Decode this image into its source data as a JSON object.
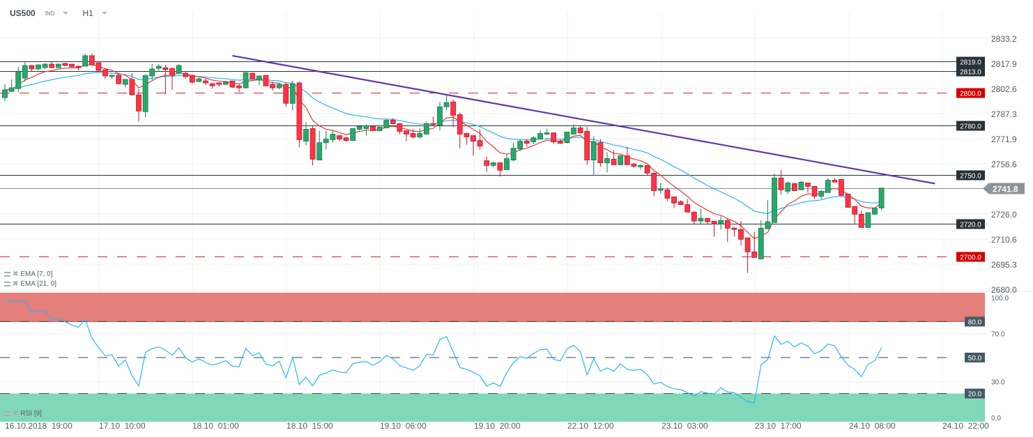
{
  "header": {
    "symbol": "US500",
    "category": "IND",
    "timeframe": "H1"
  },
  "indicators": [
    {
      "label": "EMA [7, 0]",
      "color": "#e53935"
    },
    {
      "label": "EMA [21, 0]",
      "color": "#29b6f6"
    },
    {
      "label": "RSI [9]",
      "color": "#29b6f6"
    }
  ],
  "colors": {
    "up": "#26a96c",
    "up_border": "#1b7a4e",
    "down": "#ff3347",
    "down_border": "#b71c2c",
    "trendline": "#5e35b1",
    "level": "#263238",
    "level_key": "#d50000",
    "current": "#8d9497",
    "rsi_overbought": "#e57f7b",
    "rsi_oversold": "#80d8b9"
  },
  "chart_data": {
    "type": "candlestick",
    "symbol": "US500",
    "interval": "H1",
    "price_axis": {
      "range": [
        2680.0,
        2833.2
      ],
      "ticks": [
        "2833.2",
        "2817.9",
        "2802.6",
        "2787.3",
        "2771.9",
        "2756.6",
        "2726.0",
        "2710.6",
        "2695.3",
        "2680.0"
      ]
    },
    "time_axis": {
      "ticks": [
        "16.10.2018  19:00",
        "17.10  10:00",
        "18.10  01:00",
        "18.10  15:00",
        "19.10  06:00",
        "19.10  20:00",
        "22.10  12:00",
        "23.10  03:00",
        "23.10  17:00",
        "24.10  08:00",
        "24.10  22:00"
      ]
    },
    "grid": true,
    "current_price": "2741.8",
    "levels": [
      {
        "price": 2819.0,
        "label": "2819.0",
        "style": "solid"
      },
      {
        "price": 2813.0,
        "label": "2813.0",
        "style": "solid"
      },
      {
        "price": 2800.0,
        "label": "2800.0",
        "style": "dashed-key"
      },
      {
        "price": 2780.0,
        "label": "2780.0",
        "style": "solid"
      },
      {
        "price": 2750.0,
        "label": "2750.0",
        "style": "solid"
      },
      {
        "price": 2720.0,
        "label": "2720.0",
        "style": "solid"
      },
      {
        "price": 2700.0,
        "label": "2700.0",
        "style": "dashed-key"
      }
    ],
    "trendline": {
      "start": {
        "bar": 34,
        "price": 2822.6
      },
      "end": {
        "bar": 139,
        "price": 2744.5
      }
    },
    "ema_periods": [
      7,
      21
    ],
    "rsi": {
      "period": 9,
      "range": [
        0,
        100
      ],
      "ticks": [
        "100.0",
        "70.0",
        "30.0",
        "0.0"
      ],
      "levels": [
        {
          "value": 80,
          "label": "80.0"
        },
        {
          "value": 50,
          "label": "50.0"
        },
        {
          "value": 20,
          "label": "20.0"
        }
      ]
    },
    "ohlc": [
      [
        2797.0,
        2805.1,
        2794.8,
        2801.7
      ],
      [
        2800.8,
        2808.1,
        2800.4,
        2803.0
      ],
      [
        2802.5,
        2815.8,
        2800.4,
        2812.8
      ],
      [
        2808.9,
        2818.7,
        2806.8,
        2816.6
      ],
      [
        2816.6,
        2817.0,
        2812.8,
        2814.5
      ],
      [
        2814.5,
        2817.4,
        2813.6,
        2817.0
      ],
      [
        2815.3,
        2817.9,
        2814.5,
        2817.4
      ],
      [
        2817.4,
        2818.7,
        2814.9,
        2815.3
      ],
      [
        2815.3,
        2817.9,
        2815.3,
        2817.4
      ],
      [
        2817.9,
        2818.3,
        2816.2,
        2816.6
      ],
      [
        2817.4,
        2817.4,
        2815.8,
        2815.8
      ],
      [
        2816.2,
        2816.6,
        2813.6,
        2815.3
      ],
      [
        2816.2,
        2823.8,
        2816.2,
        2822.6
      ],
      [
        2822.6,
        2823.8,
        2816.6,
        2817.0
      ],
      [
        2818.3,
        2818.3,
        2812.8,
        2813.6
      ],
      [
        2814.1,
        2814.1,
        2808.5,
        2810.2
      ],
      [
        2810.2,
        2811.1,
        2808.5,
        2810.6
      ],
      [
        2810.6,
        2811.9,
        2805.1,
        2805.5
      ],
      [
        2805.1,
        2808.5,
        2803.4,
        2808.1
      ],
      [
        2808.1,
        2811.9,
        2798.2,
        2798.7
      ],
      [
        2798.7,
        2802.1,
        2782.4,
        2788.8
      ],
      [
        2788.4,
        2810.6,
        2784.9,
        2810.6
      ],
      [
        2810.2,
        2817.4,
        2807.7,
        2814.5
      ],
      [
        2814.9,
        2817.4,
        2812.8,
        2816.2
      ],
      [
        2815.3,
        2817.0,
        2799.1,
        2814.1
      ],
      [
        2814.9,
        2815.3,
        2801.7,
        2810.6
      ],
      [
        2811.9,
        2817.4,
        2811.1,
        2816.6
      ],
      [
        2811.9,
        2813.2,
        2808.5,
        2809.8
      ],
      [
        2810.6,
        2811.1,
        2805.5,
        2806.4
      ],
      [
        2806.8,
        2809.4,
        2806.4,
        2808.5
      ],
      [
        2807.2,
        2808.5,
        2804.7,
        2806.0
      ],
      [
        2805.5,
        2806.0,
        2802.5,
        2804.2
      ],
      [
        2806.0,
        2806.4,
        2803.8,
        2805.1
      ],
      [
        2805.1,
        2807.2,
        2804.7,
        2806.4
      ],
      [
        2807.2,
        2807.2,
        2803.0,
        2803.4
      ],
      [
        2804.2,
        2805.5,
        2800.4,
        2803.0
      ],
      [
        2803.0,
        2812.3,
        2802.5,
        2812.3
      ],
      [
        2811.9,
        2812.3,
        2808.1,
        2808.5
      ],
      [
        2807.7,
        2810.6,
        2804.7,
        2810.2
      ],
      [
        2810.6,
        2810.6,
        2803.8,
        2804.2
      ],
      [
        2805.1,
        2806.8,
        2801.2,
        2803.0
      ],
      [
        2803.0,
        2806.0,
        2802.1,
        2805.1
      ],
      [
        2805.1,
        2806.4,
        2791.4,
        2793.5
      ],
      [
        2793.5,
        2807.2,
        2789.2,
        2805.5
      ],
      [
        2806.0,
        2806.8,
        2766.6,
        2771.3
      ],
      [
        2770.4,
        2781.9,
        2767.8,
        2777.7
      ],
      [
        2778.1,
        2779.8,
        2755.6,
        2759.4
      ],
      [
        2758.9,
        2776.8,
        2758.9,
        2769.5
      ],
      [
        2769.5,
        2776.8,
        2765.3,
        2771.7
      ],
      [
        2771.3,
        2776.8,
        2769.5,
        2774.7
      ],
      [
        2773.8,
        2773.8,
        2770.4,
        2771.7
      ],
      [
        2772.5,
        2773.0,
        2770.0,
        2770.8
      ],
      [
        2770.8,
        2778.1,
        2770.8,
        2778.1
      ],
      [
        2777.7,
        2779.8,
        2776.8,
        2779.4
      ],
      [
        2778.1,
        2780.7,
        2773.8,
        2779.8
      ],
      [
        2779.4,
        2779.8,
        2776.8,
        2776.8
      ],
      [
        2776.8,
        2779.4,
        2776.4,
        2779.0
      ],
      [
        2778.5,
        2783.7,
        2778.5,
        2783.2
      ],
      [
        2783.2,
        2784.5,
        2780.7,
        2781.1
      ],
      [
        2781.1,
        2781.1,
        2774.7,
        2776.4
      ],
      [
        2776.8,
        2776.8,
        2770.4,
        2774.7
      ],
      [
        2775.1,
        2777.7,
        2772.1,
        2773.0
      ],
      [
        2773.0,
        2778.5,
        2772.1,
        2775.1
      ],
      [
        2774.7,
        2782.4,
        2774.7,
        2781.1
      ],
      [
        2781.1,
        2785.4,
        2779.8,
        2780.7
      ],
      [
        2780.2,
        2794.4,
        2776.8,
        2791.4
      ],
      [
        2791.4,
        2798.7,
        2789.2,
        2794.0
      ],
      [
        2794.4,
        2795.7,
        2779.0,
        2786.2
      ],
      [
        2786.6,
        2787.9,
        2766.1,
        2774.7
      ],
      [
        2775.1,
        2775.5,
        2768.3,
        2773.0
      ],
      [
        2773.8,
        2773.8,
        2761.5,
        2770.4
      ],
      [
        2770.8,
        2777.7,
        2765.3,
        2767.4
      ],
      [
        2758.5,
        2761.0,
        2751.7,
        2755.6
      ],
      [
        2755.6,
        2758.1,
        2754.3,
        2757.2
      ],
      [
        2757.2,
        2757.2,
        2748.8,
        2752.6
      ],
      [
        2753.0,
        2762.7,
        2753.0,
        2759.8
      ],
      [
        2758.9,
        2769.5,
        2758.1,
        2766.1
      ],
      [
        2765.7,
        2771.7,
        2764.4,
        2770.4
      ],
      [
        2770.4,
        2771.7,
        2767.0,
        2769.1
      ],
      [
        2770.0,
        2773.4,
        2768.7,
        2772.5
      ],
      [
        2771.7,
        2777.2,
        2771.3,
        2775.1
      ],
      [
        2774.7,
        2778.1,
        2774.2,
        2775.5
      ],
      [
        2775.5,
        2775.5,
        2768.7,
        2770.0
      ],
      [
        2770.4,
        2771.7,
        2768.7,
        2769.1
      ],
      [
        2769.5,
        2776.0,
        2769.1,
        2776.0
      ],
      [
        2774.7,
        2780.7,
        2774.7,
        2778.5
      ],
      [
        2778.5,
        2779.8,
        2775.1,
        2775.5
      ],
      [
        2776.4,
        2779.0,
        2756.0,
        2758.9
      ],
      [
        2758.9,
        2773.4,
        2749.6,
        2770.0
      ],
      [
        2769.5,
        2771.7,
        2754.7,
        2757.2
      ],
      [
        2757.2,
        2763.6,
        2751.3,
        2759.8
      ],
      [
        2759.4,
        2764.8,
        2756.0,
        2756.0
      ],
      [
        2756.0,
        2761.9,
        2755.6,
        2761.5
      ],
      [
        2761.5,
        2767.0,
        2756.0,
        2756.0
      ],
      [
        2756.4,
        2757.2,
        2754.3,
        2755.1
      ],
      [
        2754.7,
        2756.0,
        2753.0,
        2755.6
      ],
      [
        2755.6,
        2755.6,
        2749.6,
        2750.9
      ],
      [
        2750.9,
        2751.3,
        2736.8,
        2740.2
      ],
      [
        2740.7,
        2744.9,
        2738.5,
        2741.1
      ],
      [
        2740.7,
        2742.0,
        2733.9,
        2735.6
      ],
      [
        2736.4,
        2736.4,
        2729.6,
        2732.6
      ],
      [
        2733.4,
        2734.3,
        2731.3,
        2731.7
      ],
      [
        2731.7,
        2735.1,
        2727.1,
        2727.1
      ],
      [
        2727.1,
        2727.5,
        2719.9,
        2721.6
      ],
      [
        2721.6,
        2729.2,
        2719.9,
        2723.3
      ],
      [
        2723.3,
        2723.3,
        2719.4,
        2721.2
      ],
      [
        2721.6,
        2721.6,
        2712.2,
        2719.9
      ],
      [
        2719.9,
        2724.6,
        2716.5,
        2722.0
      ],
      [
        2722.0,
        2723.3,
        2708.8,
        2717.3
      ],
      [
        2717.3,
        2718.2,
        2712.2,
        2716.5
      ],
      [
        2716.5,
        2721.6,
        2706.7,
        2710.5
      ],
      [
        2711.4,
        2711.4,
        2690.0,
        2702.8
      ],
      [
        2702.8,
        2715.2,
        2699.4,
        2699.4
      ],
      [
        2698.5,
        2722.0,
        2698.5,
        2717.3
      ],
      [
        2716.9,
        2734.3,
        2716.9,
        2721.2
      ],
      [
        2720.7,
        2750.5,
        2720.7,
        2747.9
      ],
      [
        2747.9,
        2753.0,
        2737.7,
        2740.7
      ],
      [
        2739.8,
        2745.8,
        2738.1,
        2744.9
      ],
      [
        2744.5,
        2744.5,
        2740.2,
        2740.2
      ],
      [
        2740.7,
        2746.2,
        2740.7,
        2745.4
      ],
      [
        2744.9,
        2744.9,
        2739.0,
        2742.8
      ],
      [
        2742.8,
        2742.8,
        2735.1,
        2736.8
      ],
      [
        2736.8,
        2740.7,
        2735.1,
        2739.8
      ],
      [
        2739.0,
        2747.9,
        2739.0,
        2746.6
      ],
      [
        2746.6,
        2747.9,
        2745.4,
        2745.4
      ],
      [
        2747.1,
        2747.1,
        2736.8,
        2737.3
      ],
      [
        2738.1,
        2738.1,
        2730.0,
        2730.0
      ],
      [
        2730.5,
        2730.5,
        2719.9,
        2725.8
      ],
      [
        2725.8,
        2728.0,
        2717.7,
        2717.7
      ],
      [
        2717.7,
        2727.1,
        2717.7,
        2726.7
      ],
      [
        2725.8,
        2729.6,
        2725.4,
        2729.6
      ],
      [
        2729.6,
        2741.5,
        2728.4,
        2741.8
      ]
    ]
  }
}
